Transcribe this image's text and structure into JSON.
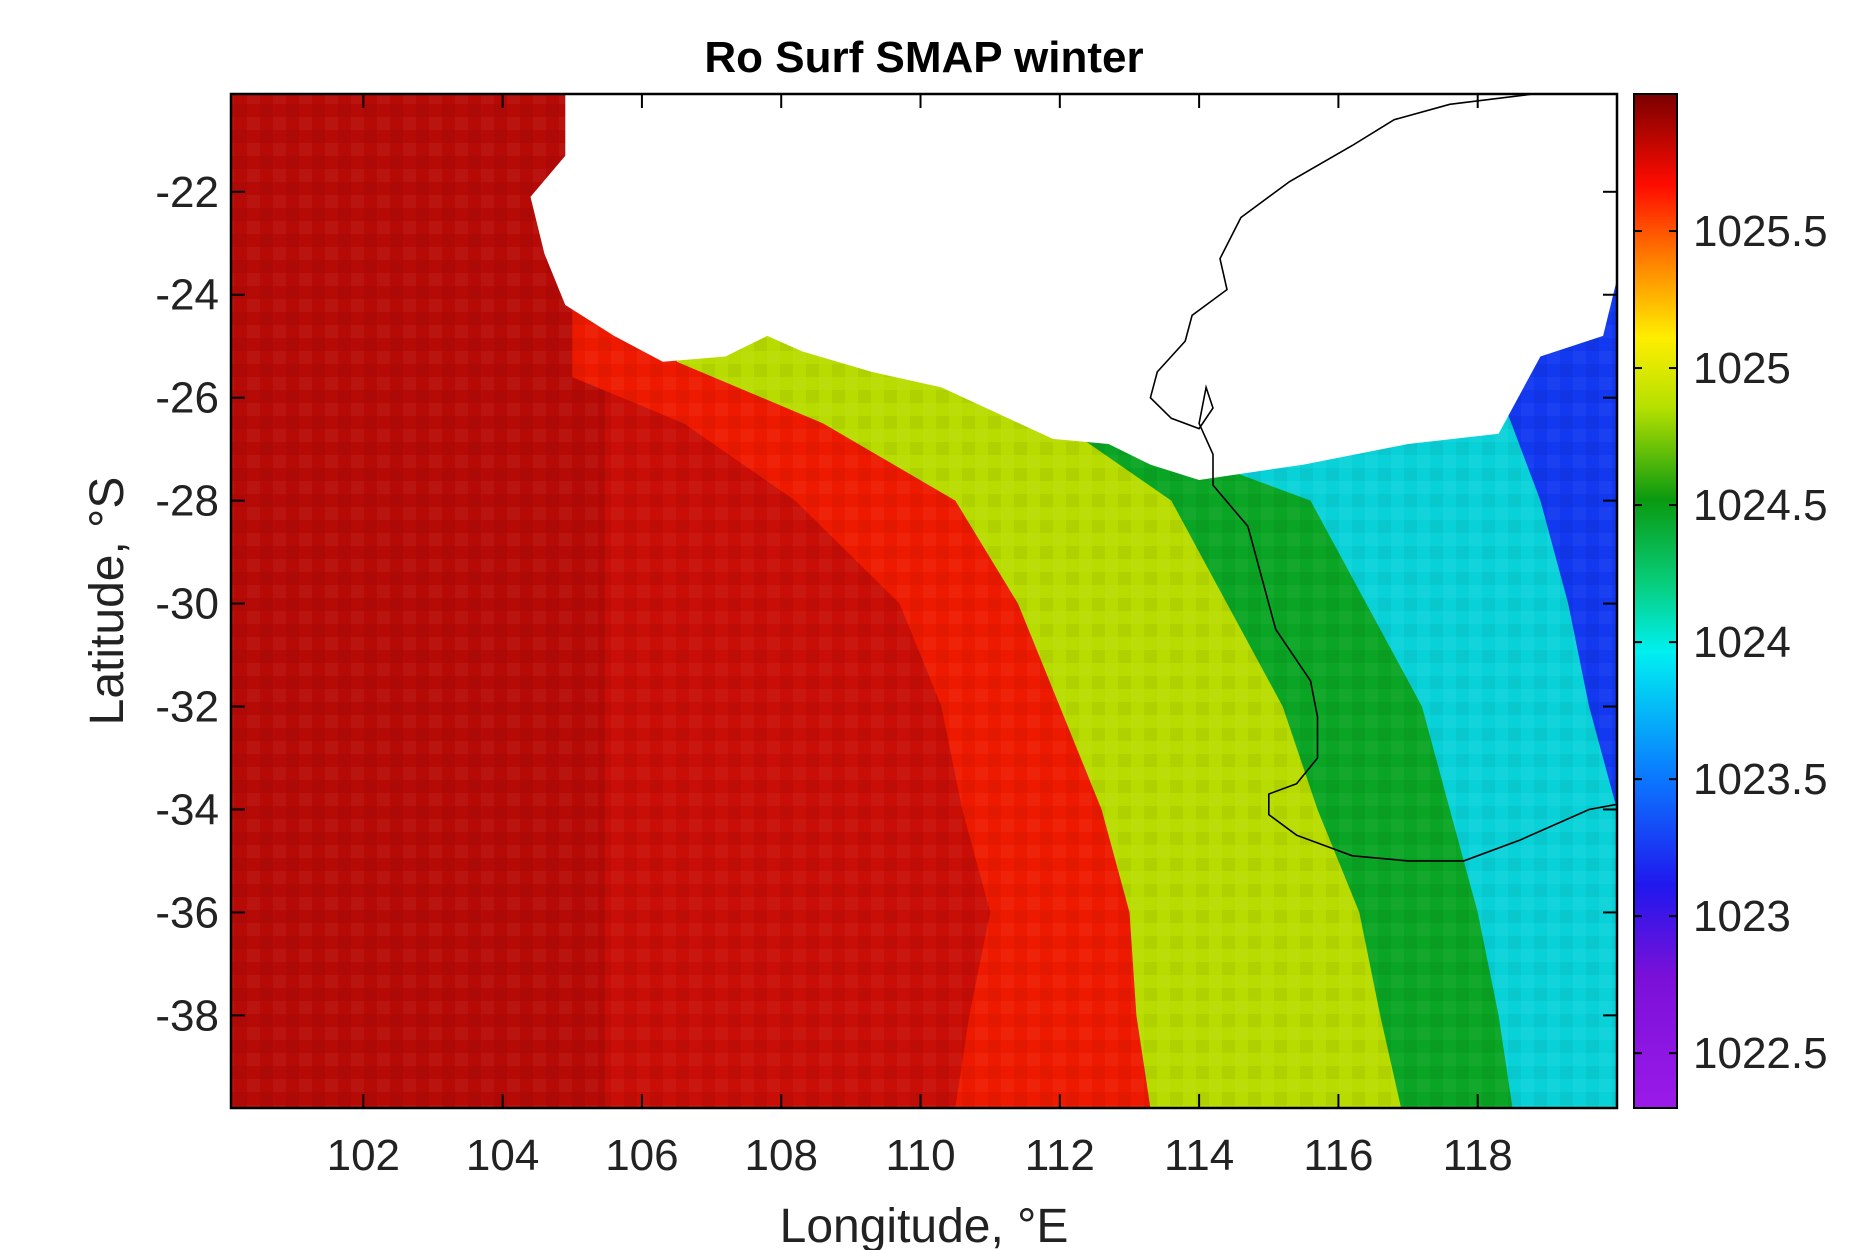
{
  "chart_data": {
    "type": "heatmap",
    "title": "Ro Surf SMAP winter",
    "xlabel": "Longitude, °E",
    "ylabel": "Latitude, °S",
    "xlim": [
      100.1,
      120.0
    ],
    "ylim": [
      -39.8,
      -20.1
    ],
    "x_ticks": [
      {
        "value": 102,
        "label": "102"
      },
      {
        "value": 104,
        "label": "104"
      },
      {
        "value": 106,
        "label": "106"
      },
      {
        "value": 108,
        "label": "108"
      },
      {
        "value": 110,
        "label": "110"
      },
      {
        "value": 112,
        "label": "112"
      },
      {
        "value": 114,
        "label": "114"
      },
      {
        "value": 116,
        "label": "116"
      },
      {
        "value": 118,
        "label": "118"
      }
    ],
    "y_ticks": [
      {
        "value": -22,
        "label": "-22"
      },
      {
        "value": -24,
        "label": "-24"
      },
      {
        "value": -26,
        "label": "-26"
      },
      {
        "value": -28,
        "label": "-28"
      },
      {
        "value": -30,
        "label": "-30"
      },
      {
        "value": -32,
        "label": "-32"
      },
      {
        "value": -34,
        "label": "-34"
      },
      {
        "value": -36,
        "label": "-36"
      },
      {
        "value": -38,
        "label": "-38"
      }
    ],
    "colorbar": {
      "clim": [
        1022.3,
        1026.0
      ],
      "ticks": [
        {
          "value": 1022.5,
          "label": "1022.5"
        },
        {
          "value": 1023,
          "label": "1023"
        },
        {
          "value": 1023.5,
          "label": "1023.5"
        },
        {
          "value": 1024,
          "label": "1024"
        },
        {
          "value": 1024.5,
          "label": "1024.5"
        },
        {
          "value": 1025,
          "label": "1025"
        },
        {
          "value": 1025.5,
          "label": "1025.5"
        }
      ],
      "colormap": "jet-like (purple-blue-cyan-green-yellow-red-darkred)"
    },
    "grid_resolution_deg": 0.25,
    "trend_description": "Density highest (~1025.8) in west; decreases eastward through yellow/green (~1024.5) to blue/purple (~1023) near the Australian coast",
    "isolines": [
      {
        "value": 1025.0,
        "lat_lon_points": [
          [
            -25.6,
            105.0
          ],
          [
            -26.5,
            106.6
          ],
          [
            -28,
            108.2
          ],
          [
            -30,
            109.7
          ],
          [
            -32,
            110.3
          ],
          [
            -34,
            110.6
          ],
          [
            -36,
            111.0
          ],
          [
            -38,
            110.7
          ],
          [
            -39.8,
            110.5
          ]
        ]
      },
      {
        "value": 1024.5,
        "lat_lon_points": [
          [
            -25.3,
            106.5
          ],
          [
            -26.5,
            108.6
          ],
          [
            -28,
            110.5
          ],
          [
            -30,
            111.4
          ],
          [
            -32,
            112.0
          ],
          [
            -34,
            112.6
          ],
          [
            -36,
            113.0
          ],
          [
            -38,
            113.1
          ],
          [
            -39.8,
            113.3
          ]
        ]
      },
      {
        "value": 1024.0,
        "lat_lon_points": [
          [
            -26.5,
            112.0
          ],
          [
            -28,
            113.6
          ],
          [
            -30,
            114.4
          ],
          [
            -32,
            115.2
          ],
          [
            -34,
            115.7
          ],
          [
            -36,
            116.3
          ],
          [
            -38,
            116.6
          ],
          [
            -39.8,
            116.9
          ]
        ]
      },
      {
        "value": 1023.5,
        "lat_lon_points": [
          [
            -27.3,
            114.2
          ],
          [
            -28,
            115.6
          ],
          [
            -30,
            116.4
          ],
          [
            -32,
            117.2
          ],
          [
            -34,
            117.6
          ],
          [
            -36,
            118.0
          ],
          [
            -38,
            118.3
          ],
          [
            -39.8,
            118.5
          ]
        ]
      },
      {
        "value": 1023.0,
        "lat_lon_points": [
          [
            -26.2,
            118.4
          ],
          [
            -28,
            118.9
          ],
          [
            -30,
            119.3
          ],
          [
            -32,
            119.6
          ],
          [
            -34,
            120.0
          ]
        ]
      }
    ],
    "land_mask": [
      [
        -20.1,
        104.9
      ],
      [
        -21.3,
        104.9
      ],
      [
        -22.1,
        104.4
      ],
      [
        -23.2,
        104.6
      ],
      [
        -24.2,
        104.9
      ],
      [
        -24.8,
        105.6
      ],
      [
        -25.3,
        106.3
      ],
      [
        -25.2,
        107.2
      ],
      [
        -24.8,
        107.8
      ],
      [
        -25.1,
        108.3
      ],
      [
        -25.5,
        109.3
      ],
      [
        -25.8,
        110.3
      ],
      [
        -26.3,
        111.1
      ],
      [
        -26.8,
        111.9
      ],
      [
        -26.9,
        112.7
      ],
      [
        -27.3,
        113.3
      ],
      [
        -27.6,
        114.0
      ],
      [
        -27.3,
        115.5
      ],
      [
        -26.9,
        117.0
      ],
      [
        -26.7,
        118.3
      ],
      [
        -25.2,
        118.9
      ],
      [
        -24.8,
        119.8
      ],
      [
        -23.7,
        120.0
      ],
      [
        -22.0,
        120.0
      ],
      [
        -20.1,
        120.0
      ]
    ],
    "coastline": [
      [
        -20.1,
        118.8
      ],
      [
        -20.3,
        117.6
      ],
      [
        -20.6,
        116.8
      ],
      [
        -21.1,
        116.2
      ],
      [
        -21.8,
        115.3
      ],
      [
        -22.5,
        114.6
      ],
      [
        -23.3,
        114.3
      ],
      [
        -23.9,
        114.4
      ],
      [
        -24.4,
        113.9
      ],
      [
        -24.9,
        113.8
      ],
      [
        -25.5,
        113.4
      ],
      [
        -26.0,
        113.3
      ],
      [
        -26.4,
        113.6
      ],
      [
        -26.6,
        114.0
      ],
      [
        -26.2,
        114.2
      ],
      [
        -25.8,
        114.1
      ],
      [
        -26.5,
        114.0
      ],
      [
        -27.1,
        114.2
      ],
      [
        -27.7,
        114.2
      ],
      [
        -28.5,
        114.7
      ],
      [
        -29.5,
        114.9
      ],
      [
        -30.5,
        115.1
      ],
      [
        -31.5,
        115.6
      ],
      [
        -32.2,
        115.7
      ],
      [
        -33.0,
        115.7
      ],
      [
        -33.5,
        115.4
      ],
      [
        -33.7,
        115.0
      ],
      [
        -34.1,
        115.0
      ],
      [
        -34.5,
        115.4
      ],
      [
        -34.9,
        116.2
      ],
      [
        -35.0,
        117.0
      ],
      [
        -35.0,
        117.8
      ],
      [
        -34.6,
        118.6
      ],
      [
        -34.0,
        119.6
      ],
      [
        -33.9,
        120.0
      ]
    ]
  }
}
